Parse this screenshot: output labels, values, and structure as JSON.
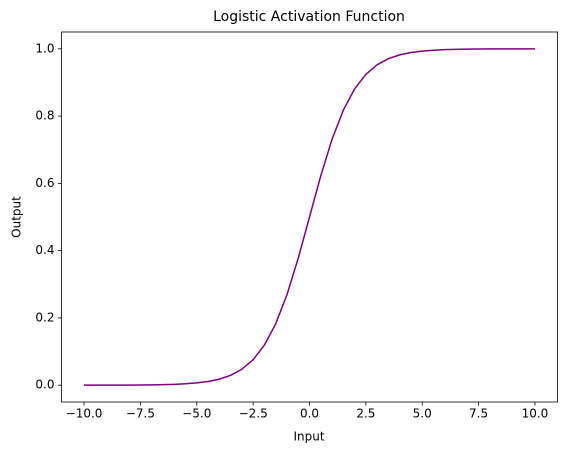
{
  "chart_data": {
    "type": "line",
    "title": "Logistic Activation Function",
    "x_label": "Input",
    "y_label": "Output",
    "x": [
      -10,
      -9.5,
      -9,
      -8.5,
      -8,
      -7.5,
      -7,
      -6.5,
      -6,
      -5.5,
      -5,
      -4.5,
      -4,
      -3.5,
      -3,
      -2.5,
      -2,
      -1.5,
      -1,
      -0.5,
      0,
      0.5,
      1,
      1.5,
      2,
      2.5,
      3,
      3.5,
      4,
      4.5,
      5,
      5.5,
      6,
      6.5,
      7,
      7.5,
      8,
      8.5,
      9,
      9.5,
      10
    ],
    "values": [
      0.0,
      0.0001,
      0.0001,
      0.0002,
      0.0003,
      0.0006,
      0.0009,
      0.0015,
      0.0025,
      0.0041,
      0.0067,
      0.011,
      0.018,
      0.0293,
      0.0474,
      0.0759,
      0.1192,
      0.1824,
      0.2689,
      0.3775,
      0.5,
      0.6225,
      0.7311,
      0.8176,
      0.8808,
      0.9241,
      0.9526,
      0.9707,
      0.982,
      0.989,
      0.9933,
      0.9959,
      0.9975,
      0.9985,
      0.9991,
      0.9994,
      0.9997,
      0.9998,
      0.9999,
      0.9999,
      1.0
    ],
    "color": "#800080",
    "xlim": [
      -11,
      11
    ],
    "xticks": [
      {
        "value": -10,
        "label": "−10.0"
      },
      {
        "value": -7.5,
        "label": "−7.5"
      },
      {
        "value": -5,
        "label": "−5.0"
      },
      {
        "value": -2.5,
        "label": "−2.5"
      },
      {
        "value": 0,
        "label": "0.0"
      },
      {
        "value": 2.5,
        "label": "2.5"
      },
      {
        "value": 5,
        "label": "5.0"
      },
      {
        "value": 7.5,
        "label": "7.5"
      },
      {
        "value": 10,
        "label": "10.0"
      }
    ],
    "ylim": [
      -0.05,
      1.05
    ],
    "yticks": [
      {
        "value": 0,
        "label": "0.0"
      },
      {
        "value": 0.2,
        "label": "0.2"
      },
      {
        "value": 0.4,
        "label": "0.4"
      },
      {
        "value": 0.6,
        "label": "0.6"
      },
      {
        "value": 0.8,
        "label": "0.8"
      },
      {
        "value": 1,
        "label": "1.0"
      }
    ]
  }
}
